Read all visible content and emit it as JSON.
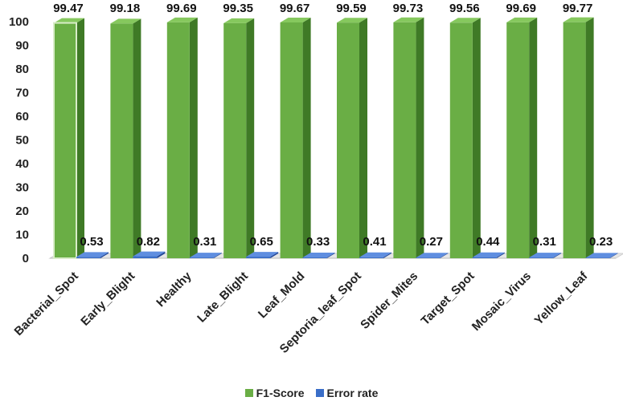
{
  "chart_data": {
    "type": "bar",
    "categories": [
      "Bacterial_Spot",
      "Early_Blight",
      "Healthy",
      "Late_Blight",
      "Leaf_Mold",
      "Septoria_leaf_Spot",
      "Spider_Mites",
      "Target_Spot",
      "Mosaic_Virus",
      "Yellow_Leaf"
    ],
    "series": [
      {
        "name": "F1-Score",
        "values": [
          99.47,
          99.18,
          99.69,
          99.35,
          99.67,
          99.59,
          99.73,
          99.56,
          99.69,
          99.77
        ],
        "color": "#6aae45"
      },
      {
        "name": "Error rate",
        "values": [
          0.53,
          0.82,
          0.31,
          0.65,
          0.33,
          0.41,
          0.27,
          0.44,
          0.31,
          0.23
        ],
        "color": "#3a6ec8"
      }
    ],
    "ylim": [
      0,
      100
    ],
    "yticks": [
      0,
      10,
      20,
      30,
      40,
      50,
      60,
      70,
      80,
      90,
      100
    ],
    "grid": false,
    "legend_position": "bottom",
    "style": "3d-columns"
  }
}
